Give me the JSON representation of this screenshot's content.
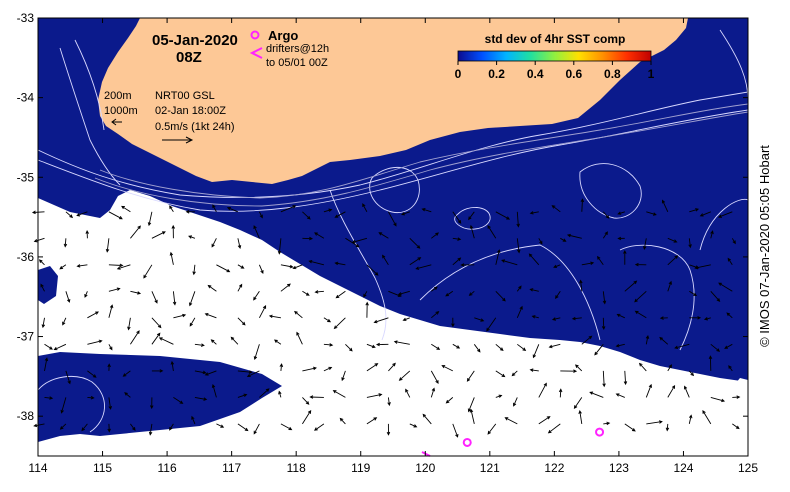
{
  "header": {
    "date": "05-Jan-2020",
    "time": "08Z"
  },
  "legend_argo": {
    "title": "Argo",
    "drifters_line1": "drifters@12h",
    "drifters_line2": "to 05/01 00Z"
  },
  "colorbar": {
    "title": "std dev of 4hr SST comp",
    "ticks": [
      "0",
      "0.2",
      "0.4",
      "0.6",
      "0.8",
      "1"
    ],
    "colors": [
      "#0b0b8f",
      "#0050ff",
      "#00b4ff",
      "#20e0a0",
      "#90f040",
      "#ffe000",
      "#ff9000",
      "#ff3000",
      "#c00000"
    ]
  },
  "contour_legend": {
    "line1": "200m",
    "line2": "1000m",
    "source": "NRT00 GSL",
    "date": "02-Jan 18:00Z",
    "scale": "0.5m/s (1kt 24h)"
  },
  "credit": "© IMOS 07-Jan-2020 05:05 Hobart",
  "axes": {
    "x_ticks": [
      "114",
      "115",
      "116",
      "117",
      "118",
      "119",
      "120",
      "121",
      "122",
      "123",
      "124",
      "125"
    ],
    "y_ticks": [
      "-33",
      "-34",
      "-35",
      "-36",
      "-37",
      "-38"
    ]
  },
  "colors": {
    "land": "#fdc896",
    "ocean": "#0b1a8c",
    "cloud": "#ffffff",
    "marker": "#ff22ff"
  },
  "argo_floats": [
    {
      "lon": 120.65,
      "lat": -38.33
    },
    {
      "lon": 122.7,
      "lat": -38.2
    }
  ]
}
